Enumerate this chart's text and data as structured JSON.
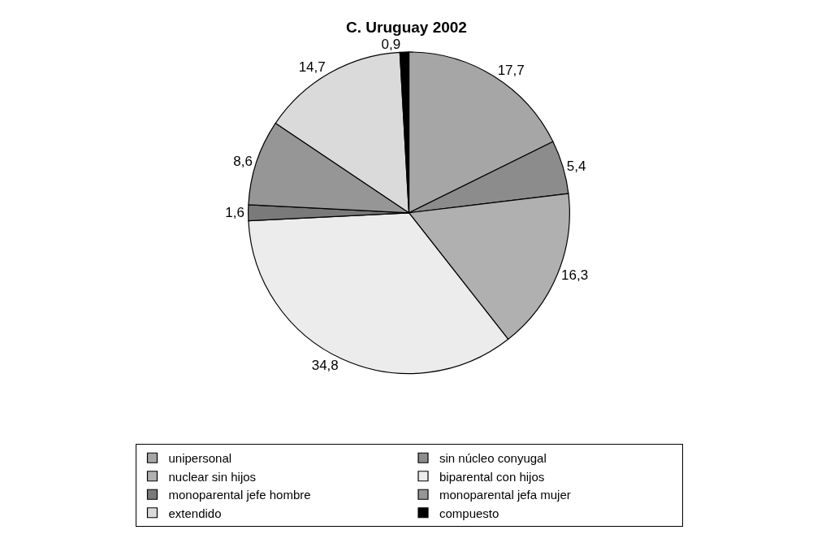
{
  "chart_data": {
    "type": "pie",
    "title": "C. Uruguay 2002",
    "categories": [
      "unipersonal",
      "sin núcleo conyugal",
      "nuclear sin hijos",
      "biparental con hijos",
      "monoparental jefe hombre",
      "monoparental jefa mujer",
      "extendido",
      "compuesto"
    ],
    "values": [
      17.7,
      5.4,
      16.3,
      34.8,
      1.6,
      8.6,
      14.7,
      0.9
    ],
    "value_labels": [
      "17,7",
      "5,4",
      "16,3",
      "34,8",
      "1,6",
      "8,6",
      "14,7",
      "0,9"
    ],
    "colors": [
      "#a6a6a6",
      "#8c8c8c",
      "#b0b0b0",
      "#ececec",
      "#7a7a7a",
      "#969696",
      "#dadada",
      "#000000"
    ],
    "legend": "bottom"
  }
}
